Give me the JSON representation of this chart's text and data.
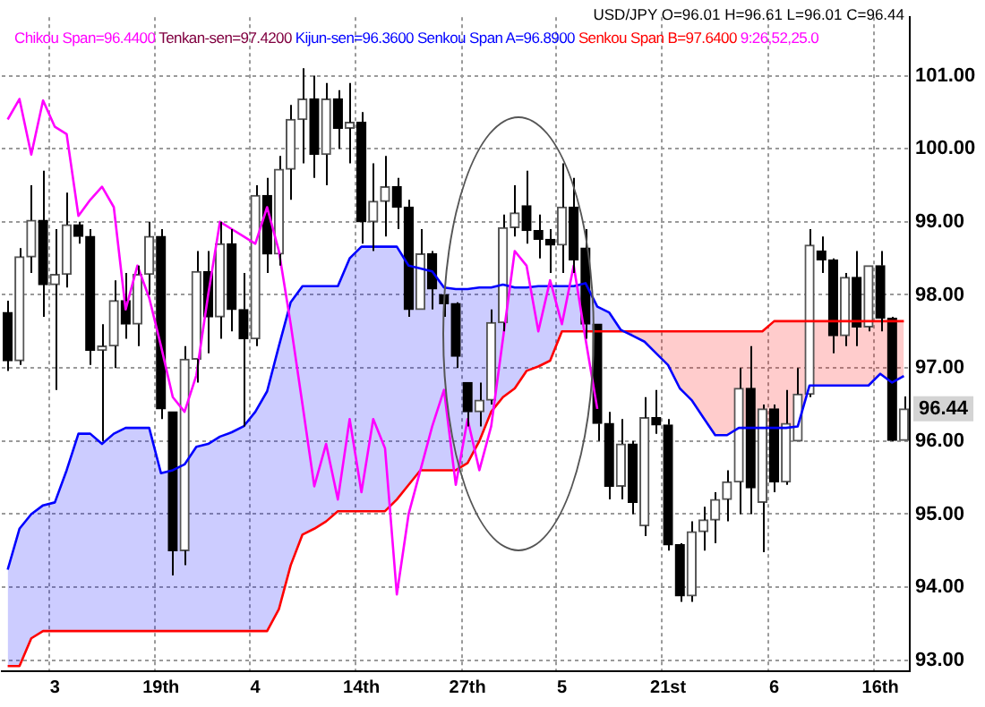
{
  "chart_data": {
    "type": "candlestick",
    "title": "USD/JPY O=96.01 H=96.61 L=96.01 C=96.44",
    "categories": [
      null,
      null,
      null,
      null,
      "3",
      null,
      null,
      null,
      null,
      null,
      null,
      null,
      null,
      "19th",
      null,
      null,
      null,
      null,
      null,
      null,
      null,
      "4",
      null,
      null,
      null,
      null,
      null,
      null,
      null,
      null,
      "14th",
      null,
      null,
      null,
      null,
      null,
      null,
      null,
      null,
      "27th",
      null,
      null,
      null,
      null,
      null,
      null,
      null,
      "5",
      null,
      null,
      null,
      null,
      null,
      null,
      null,
      null,
      "21st",
      null,
      null,
      null,
      null,
      null,
      null,
      null,
      null,
      "6",
      null,
      null,
      null,
      null,
      null,
      null,
      null,
      null,
      "16th",
      null,
      null
    ],
    "ohlc": [
      [
        97.76,
        97.92,
        96.96,
        97.1
      ],
      [
        97.1,
        98.64,
        97.04,
        98.52
      ],
      [
        98.52,
        99.5,
        98.3,
        99.02
      ],
      [
        99.02,
        99.7,
        97.7,
        98.14
      ],
      [
        98.14,
        98.9,
        96.7,
        98.28
      ],
      [
        98.28,
        99.4,
        98.1,
        98.96
      ],
      [
        98.96,
        99.0,
        98.7,
        98.8
      ],
      [
        98.8,
        98.9,
        97.04,
        97.24
      ],
      [
        97.24,
        97.6,
        96.0,
        97.3
      ],
      [
        97.3,
        98.2,
        97.0,
        97.92
      ],
      [
        97.92,
        98.3,
        97.4,
        97.6
      ],
      [
        97.6,
        98.4,
        97.3,
        98.28
      ],
      [
        98.28,
        99.0,
        98.0,
        98.8
      ],
      [
        98.8,
        98.9,
        96.3,
        96.44
      ],
      [
        96.4,
        96.4,
        94.16,
        94.5
      ],
      [
        94.5,
        97.3,
        94.3,
        97.12
      ],
      [
        97.12,
        98.6,
        96.8,
        98.32
      ],
      [
        98.32,
        98.6,
        97.2,
        97.7
      ],
      [
        97.7,
        99.0,
        97.4,
        98.7
      ],
      [
        98.7,
        98.9,
        97.5,
        97.8
      ],
      [
        97.8,
        98.3,
        96.2,
        97.4
      ],
      [
        97.4,
        99.5,
        97.3,
        99.36
      ],
      [
        99.36,
        99.6,
        98.3,
        98.56
      ],
      [
        98.56,
        99.9,
        98.4,
        99.72
      ],
      [
        99.72,
        100.6,
        99.3,
        100.4
      ],
      [
        100.4,
        101.1,
        99.8,
        100.68
      ],
      [
        100.68,
        101.0,
        99.6,
        99.92
      ],
      [
        99.92,
        100.9,
        99.5,
        100.68
      ],
      [
        100.68,
        100.8,
        100.0,
        100.28
      ],
      [
        100.28,
        100.9,
        99.8,
        100.36
      ],
      [
        100.36,
        100.5,
        98.7,
        99.0
      ],
      [
        99.0,
        99.8,
        98.6,
        99.28
      ],
      [
        99.28,
        99.9,
        98.8,
        99.48
      ],
      [
        99.48,
        99.6,
        98.9,
        99.2
      ],
      [
        99.2,
        99.3,
        97.7,
        97.8
      ],
      [
        97.8,
        98.9,
        97.8,
        98.56
      ],
      [
        98.56,
        98.6,
        97.8,
        98.08
      ],
      [
        98.0,
        98.0,
        97.7,
        97.88
      ],
      [
        97.88,
        97.9,
        97.0,
        97.16
      ],
      [
        96.8,
        96.8,
        96.2,
        96.4
      ],
      [
        96.4,
        96.8,
        96.2,
        96.56
      ],
      [
        96.56,
        97.8,
        96.5,
        97.62
      ],
      [
        97.62,
        99.1,
        97.5,
        98.92
      ],
      [
        98.92,
        99.5,
        98.8,
        99.12
      ],
      [
        99.22,
        99.7,
        98.7,
        98.88
      ],
      [
        98.88,
        99.1,
        98.5,
        98.76
      ],
      [
        98.76,
        98.9,
        98.3,
        98.68
      ],
      [
        98.68,
        99.8,
        98.3,
        99.2
      ],
      [
        99.2,
        99.6,
        98.3,
        98.48
      ],
      [
        98.64,
        98.9,
        97.4,
        97.6
      ],
      [
        97.6,
        97.6,
        96.0,
        96.24
      ],
      [
        96.24,
        96.4,
        95.2,
        95.38
      ],
      [
        95.38,
        96.3,
        95.2,
        95.96
      ],
      [
        95.96,
        96.0,
        95.0,
        95.16
      ],
      [
        94.84,
        96.6,
        94.7,
        96.32
      ],
      [
        96.32,
        96.7,
        96.1,
        96.22
      ],
      [
        96.22,
        96.3,
        94.5,
        94.58
      ],
      [
        94.58,
        94.6,
        93.8,
        93.88
      ],
      [
        93.88,
        94.9,
        93.8,
        94.76
      ],
      [
        94.76,
        95.1,
        94.5,
        94.92
      ],
      [
        94.92,
        95.3,
        94.6,
        95.2
      ],
      [
        95.2,
        95.6,
        94.9,
        95.44
      ],
      [
        95.44,
        97.0,
        95.0,
        96.72
      ],
      [
        96.72,
        97.3,
        95.0,
        95.36
      ],
      [
        95.16,
        96.5,
        94.48,
        96.44
      ],
      [
        96.44,
        96.5,
        95.3,
        95.44
      ],
      [
        95.44,
        96.7,
        95.4,
        96.24
      ],
      [
        96.0,
        97.0,
        96.0,
        96.64
      ],
      [
        96.64,
        98.9,
        96.6,
        98.68
      ],
      [
        98.6,
        98.8,
        98.3,
        98.48
      ],
      [
        98.48,
        98.5,
        97.2,
        97.44
      ],
      [
        97.44,
        98.3,
        97.3,
        98.24
      ],
      [
        98.24,
        98.6,
        97.3,
        97.56
      ],
      [
        97.56,
        98.4,
        97.5,
        98.4
      ],
      [
        98.4,
        98.6,
        97.5,
        97.68
      ],
      [
        97.68,
        97.7,
        96.0,
        96.01
      ],
      [
        96.01,
        96.61,
        96.01,
        96.44
      ]
    ],
    "series": [
      {
        "name": "Chikou Span=96.4400",
        "color": "#ff00ff",
        "type": "line",
        "values": [
          100.4,
          100.68,
          99.92,
          100.66,
          100.3,
          100.2,
          99.08,
          99.3,
          99.48,
          99.2,
          97.8,
          98.4,
          97.96,
          97.3,
          96.6,
          96.4,
          96.9,
          98.0,
          99.0,
          98.9,
          98.8,
          98.7,
          99.2,
          98.6,
          97.6,
          96.5,
          95.38,
          95.96,
          95.2,
          96.3,
          95.3,
          96.3,
          95.9,
          93.9,
          95.0,
          95.6,
          96.2,
          96.7,
          95.4,
          96.3,
          95.6,
          96.2,
          97.4,
          98.6,
          98.4,
          97.5,
          98.2,
          97.6,
          98.4,
          97.4,
          96.44,
          null,
          null,
          null,
          null,
          null,
          null,
          null,
          null,
          null,
          null,
          null,
          null,
          null,
          null,
          null,
          null,
          null,
          null,
          null,
          null,
          null,
          null,
          null,
          null,
          null,
          null
        ]
      },
      {
        "name": "Senkou Span A=96.8900",
        "color": "#0000ff",
        "type": "line",
        "upper": [
          94.24,
          94.8,
          95.0,
          95.12,
          95.16,
          95.6,
          96.1,
          96.1,
          95.96,
          96.1,
          96.18,
          96.18,
          96.18,
          95.56,
          95.6,
          95.68,
          95.92,
          95.96,
          96.06,
          96.12,
          96.2,
          96.4,
          96.68,
          97.3,
          97.9,
          98.12,
          98.12,
          98.12,
          98.12,
          98.5,
          98.66,
          98.66,
          98.66,
          98.66,
          98.4,
          98.36,
          98.32,
          98.1,
          98.08,
          98.08,
          98.1,
          98.1,
          98.14,
          98.1,
          98.1,
          98.12,
          98.12,
          98.12,
          98.12,
          98.16,
          97.84,
          97.76,
          97.52,
          97.44,
          null,
          null,
          null,
          null,
          null,
          null,
          null,
          null,
          null,
          null,
          null,
          null,
          null,
          null,
          null,
          null,
          null,
          null,
          null,
          null,
          null,
          null,
          null
        ],
        "lower": [
          92.92,
          92.92,
          93.3,
          93.4,
          93.4,
          93.4,
          93.4,
          93.4,
          93.4,
          93.4,
          93.4,
          93.4,
          93.4,
          93.4,
          93.4,
          93.4,
          93.4,
          93.4,
          93.4,
          93.4,
          93.4,
          93.4,
          93.4,
          93.7,
          94.3,
          94.72,
          94.8,
          94.9,
          95.04,
          95.04,
          95.04,
          95.04,
          95.04,
          95.2,
          95.4,
          95.6,
          95.6,
          95.6,
          95.6,
          95.7,
          96.0,
          96.4,
          96.6,
          96.72,
          96.96,
          97.02,
          97.1,
          97.5,
          97.5,
          97.5,
          97.5,
          97.5,
          97.5,
          97.5,
          null,
          null,
          null,
          null,
          null,
          null,
          null,
          null,
          null,
          null,
          null,
          null,
          null,
          null,
          null,
          null,
          null,
          null,
          null,
          null,
          null,
          null,
          null
        ],
        "values": [
          94.24,
          94.8,
          95.0,
          95.12,
          95.16,
          95.6,
          96.1,
          96.1,
          95.96,
          96.1,
          96.18,
          96.18,
          96.18,
          95.56,
          95.6,
          95.68,
          95.92,
          95.96,
          96.06,
          96.12,
          96.2,
          96.4,
          96.68,
          97.3,
          97.9,
          98.12,
          98.12,
          98.12,
          98.12,
          98.5,
          98.66,
          98.66,
          98.66,
          98.66,
          98.4,
          98.36,
          98.32,
          98.1,
          98.08,
          98.08,
          98.1,
          98.1,
          98.14,
          98.1,
          98.1,
          98.12,
          98.12,
          98.12,
          98.12,
          98.16,
          97.84,
          97.76,
          97.52,
          97.44,
          97.36,
          97.2,
          97.04,
          96.72,
          96.56,
          96.32,
          96.08,
          96.08,
          96.18,
          96.18,
          96.18,
          96.18,
          96.18,
          96.2,
          96.76,
          96.76,
          96.76,
          96.76,
          96.76,
          96.76,
          96.92,
          96.8,
          96.89
        ]
      },
      {
        "name": "Senkou Span B=97.6400",
        "color": "#ff0000",
        "type": "line",
        "upper": [
          null,
          null,
          null,
          null,
          null,
          null,
          null,
          null,
          null,
          null,
          null,
          null,
          null,
          null,
          null,
          null,
          null,
          null,
          null,
          null,
          null,
          null,
          null,
          null,
          null,
          null,
          null,
          null,
          null,
          null,
          null,
          null,
          null,
          null,
          null,
          null,
          null,
          null,
          null,
          null,
          null,
          null,
          null,
          null,
          null,
          null,
          null,
          null,
          null,
          null,
          null,
          null,
          97.5,
          97.5,
          97.5,
          97.5,
          97.5,
          97.5,
          97.5,
          97.5,
          97.5,
          97.5,
          97.5,
          97.5,
          97.5,
          97.64,
          97.64,
          97.64,
          97.64,
          97.64,
          97.64,
          97.64,
          97.64,
          97.64,
          97.64,
          97.64,
          97.64
        ],
        "lower": [
          null,
          null,
          null,
          null,
          null,
          null,
          null,
          null,
          null,
          null,
          null,
          null,
          null,
          null,
          null,
          null,
          null,
          null,
          null,
          null,
          null,
          null,
          null,
          null,
          null,
          null,
          null,
          null,
          null,
          null,
          null,
          null,
          null,
          null,
          null,
          null,
          null,
          null,
          null,
          null,
          null,
          null,
          null,
          null,
          null,
          null,
          null,
          null,
          null,
          null,
          null,
          null,
          97.52,
          97.44,
          97.36,
          97.2,
          97.04,
          96.72,
          96.56,
          96.32,
          96.08,
          96.08,
          96.18,
          96.18,
          96.18,
          96.18,
          96.18,
          96.2,
          96.76,
          96.76,
          96.76,
          96.76,
          96.76,
          96.76,
          96.92,
          96.8,
          96.89
        ],
        "values": [
          92.92,
          92.92,
          93.3,
          93.4,
          93.4,
          93.4,
          93.4,
          93.4,
          93.4,
          93.4,
          93.4,
          93.4,
          93.4,
          93.4,
          93.4,
          93.4,
          93.4,
          93.4,
          93.4,
          93.4,
          93.4,
          93.4,
          93.4,
          93.7,
          94.3,
          94.72,
          94.8,
          94.9,
          95.04,
          95.04,
          95.04,
          95.04,
          95.04,
          95.2,
          95.4,
          95.6,
          95.6,
          95.6,
          95.6,
          95.7,
          96.0,
          96.4,
          96.6,
          96.72,
          96.96,
          97.02,
          97.1,
          97.5,
          97.5,
          97.5,
          97.5,
          97.5,
          97.5,
          97.5,
          97.5,
          97.5,
          97.5,
          97.5,
          97.5,
          97.5,
          97.5,
          97.5,
          97.5,
          97.5,
          97.5,
          97.64,
          97.64,
          97.64,
          97.64,
          97.64,
          97.64,
          97.64,
          97.64,
          97.64,
          97.64,
          97.64,
          97.64
        ]
      }
    ],
    "ylim": [
      92.85,
      101.8
    ],
    "yticks": [
      {
        "value": 93,
        "label": "93.00"
      },
      {
        "value": 94,
        "label": "94.00"
      },
      {
        "value": 95,
        "label": "95.00"
      },
      {
        "value": 96,
        "label": "96.00"
      },
      {
        "value": 97,
        "label": "97.00"
      },
      {
        "value": 98,
        "label": "98.00"
      },
      {
        "value": 99,
        "label": "99.00"
      },
      {
        "value": 100,
        "label": "100.00"
      },
      {
        "value": 101,
        "label": "101.00"
      }
    ],
    "annotations": [
      "Tenkan-sen=97.4200",
      "Kijun-sen=96.3600",
      "9:26,52,25.0",
      {
        "text": "96.44",
        "y": 96.44
      }
    ],
    "grid": true,
    "legend": "top"
  }
}
